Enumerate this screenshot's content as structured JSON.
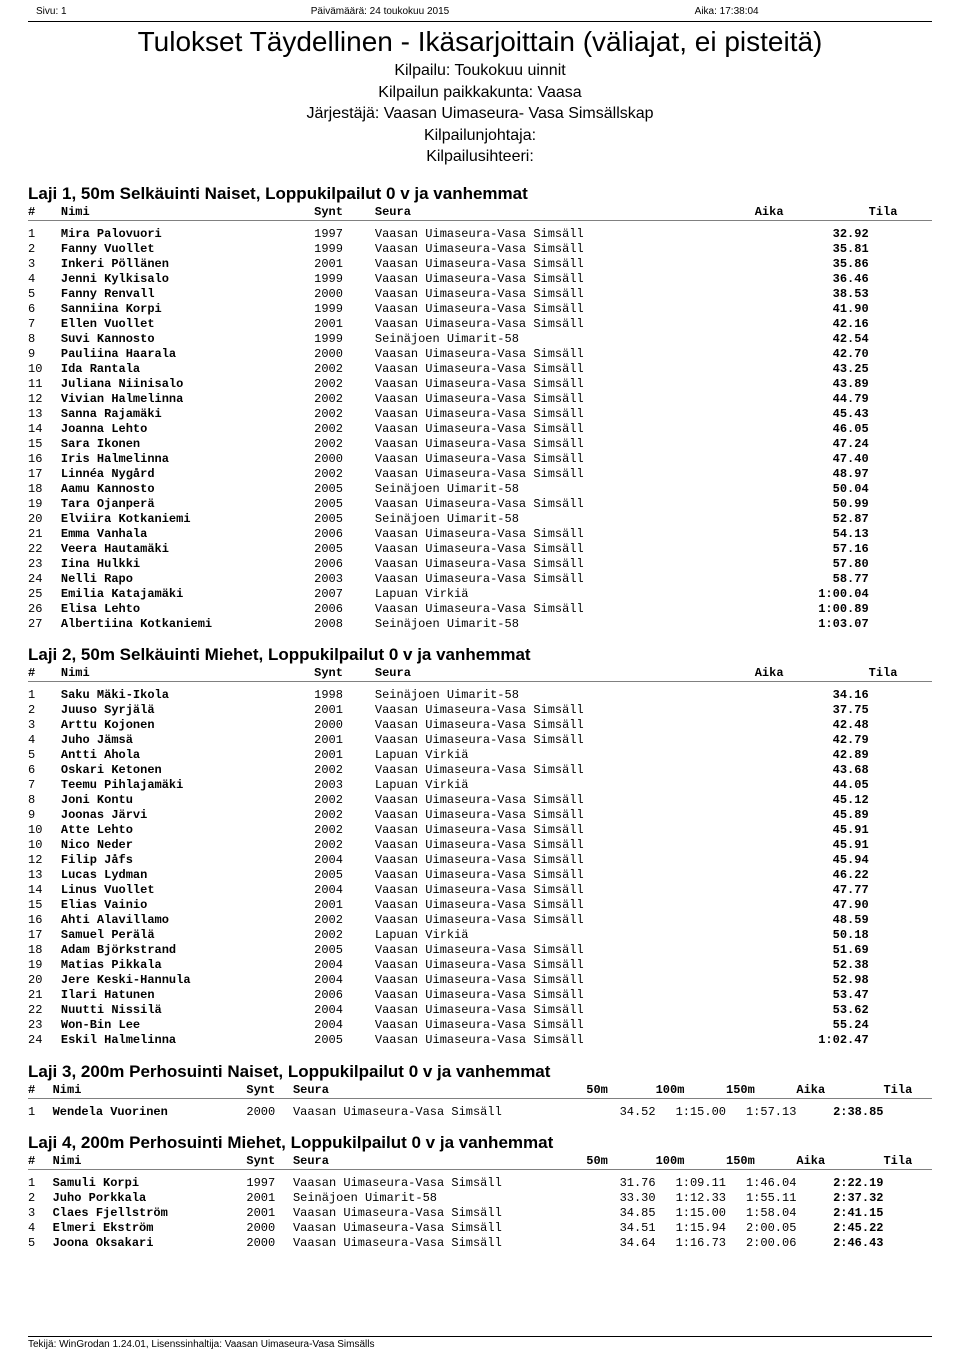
{
  "meta": {
    "page_label": "Sivu: 1",
    "date_label": "Päivämäärä: 24 toukokuu 2015",
    "time_label": "Aika: 17:38:04"
  },
  "title": "Tulokset Täydellinen - Ikäsarjoittain (väliajat, ei pisteitä)",
  "sub": {
    "comp": "Kilpailu: Toukokuu uinnit",
    "place": "Kilpailun paikkakunta: Vaasa",
    "org": "Järjestäjä: Vaasan Uimaseura- Vasa Simsällskap",
    "director": "Kilpailunjohtaja:",
    "secretary": "Kilpailusihteeri:"
  },
  "headers": {
    "rank": "#",
    "name": "Nimi",
    "synt": "Synt",
    "seura": "Seura",
    "s50": "50m",
    "s100": "100m",
    "s150": "150m",
    "aika": "Aika",
    "tila": "Tila"
  },
  "events": [
    {
      "title": "Laji 1, 50m Selkäuinti Naiset, Loppukilpailut 0 v ja vanhemmat",
      "splits": [],
      "rows": [
        {
          "r": "1",
          "n": "Mira Palovuori",
          "y": "1997",
          "c": "Vaasan Uimaseura-Vasa Simsäll",
          "t": "32.92"
        },
        {
          "r": "2",
          "n": "Fanny Vuollet",
          "y": "1999",
          "c": "Vaasan Uimaseura-Vasa Simsäll",
          "t": "35.81"
        },
        {
          "r": "3",
          "n": "Inkeri Pöllänen",
          "y": "2001",
          "c": "Vaasan Uimaseura-Vasa Simsäll",
          "t": "35.86"
        },
        {
          "r": "4",
          "n": "Jenni Kylkisalo",
          "y": "1999",
          "c": "Vaasan Uimaseura-Vasa Simsäll",
          "t": "36.46"
        },
        {
          "r": "5",
          "n": "Fanny Renvall",
          "y": "2000",
          "c": "Vaasan Uimaseura-Vasa Simsäll",
          "t": "38.53"
        },
        {
          "r": "6",
          "n": "Sanniina Korpi",
          "y": "1999",
          "c": "Vaasan Uimaseura-Vasa Simsäll",
          "t": "41.90"
        },
        {
          "r": "7",
          "n": "Ellen Vuollet",
          "y": "2001",
          "c": "Vaasan Uimaseura-Vasa Simsäll",
          "t": "42.16"
        },
        {
          "r": "8",
          "n": "Suvi Kannosto",
          "y": "1999",
          "c": "Seinäjoen Uimarit-58",
          "t": "42.54"
        },
        {
          "r": "9",
          "n": "Pauliina Haarala",
          "y": "2000",
          "c": "Vaasan Uimaseura-Vasa Simsäll",
          "t": "42.70"
        },
        {
          "r": "10",
          "n": "Ida Rantala",
          "y": "2002",
          "c": "Vaasan Uimaseura-Vasa Simsäll",
          "t": "43.25"
        },
        {
          "r": "11",
          "n": "Juliana Niinisalo",
          "y": "2002",
          "c": "Vaasan Uimaseura-Vasa Simsäll",
          "t": "43.89"
        },
        {
          "r": "12",
          "n": "Vivian Halmelinna",
          "y": "2002",
          "c": "Vaasan Uimaseura-Vasa Simsäll",
          "t": "44.79"
        },
        {
          "r": "13",
          "n": "Sanna Rajamäki",
          "y": "2002",
          "c": "Vaasan Uimaseura-Vasa Simsäll",
          "t": "45.43"
        },
        {
          "r": "14",
          "n": "Joanna Lehto",
          "y": "2002",
          "c": "Vaasan Uimaseura-Vasa Simsäll",
          "t": "46.05"
        },
        {
          "r": "15",
          "n": "Sara Ikonen",
          "y": "2002",
          "c": "Vaasan Uimaseura-Vasa Simsäll",
          "t": "47.24"
        },
        {
          "r": "16",
          "n": "Iris Halmelinna",
          "y": "2000",
          "c": "Vaasan Uimaseura-Vasa Simsäll",
          "t": "47.40"
        },
        {
          "r": "17",
          "n": "Linnéa Nygård",
          "y": "2002",
          "c": "Vaasan Uimaseura-Vasa Simsäll",
          "t": "48.97"
        },
        {
          "r": "18",
          "n": "Aamu Kannosto",
          "y": "2005",
          "c": "Seinäjoen Uimarit-58",
          "t": "50.04"
        },
        {
          "r": "19",
          "n": "Tara Ojanperä",
          "y": "2005",
          "c": "Vaasan Uimaseura-Vasa Simsäll",
          "t": "50.99"
        },
        {
          "r": "20",
          "n": "Elviira Kotkaniemi",
          "y": "2005",
          "c": "Seinäjoen Uimarit-58",
          "t": "52.87"
        },
        {
          "r": "21",
          "n": "Emma Vanhala",
          "y": "2006",
          "c": "Vaasan Uimaseura-Vasa Simsäll",
          "t": "54.13"
        },
        {
          "r": "22",
          "n": "Veera Hautamäki",
          "y": "2005",
          "c": "Vaasan Uimaseura-Vasa Simsäll",
          "t": "57.16"
        },
        {
          "r": "23",
          "n": "Iina Hulkki",
          "y": "2006",
          "c": "Vaasan Uimaseura-Vasa Simsäll",
          "t": "57.80"
        },
        {
          "r": "24",
          "n": "Nelli Rapo",
          "y": "2003",
          "c": "Vaasan Uimaseura-Vasa Simsäll",
          "t": "58.77"
        },
        {
          "r": "25",
          "n": "Emilia Katajamäki",
          "y": "2007",
          "c": "Lapuan Virkiä",
          "t": "1:00.04"
        },
        {
          "r": "26",
          "n": "Elisa Lehto",
          "y": "2006",
          "c": "Vaasan Uimaseura-Vasa Simsäll",
          "t": "1:00.89"
        },
        {
          "r": "27",
          "n": "Albertiina Kotkaniemi",
          "y": "2008",
          "c": "Seinäjoen Uimarit-58",
          "t": "1:03.07"
        }
      ]
    },
    {
      "title": "Laji 2, 50m Selkäuinti Miehet, Loppukilpailut 0 v ja vanhemmat",
      "splits": [],
      "rows": [
        {
          "r": "1",
          "n": "Saku Mäki-Ikola",
          "y": "1998",
          "c": "Seinäjoen Uimarit-58",
          "t": "34.16"
        },
        {
          "r": "2",
          "n": "Juuso Syrjälä",
          "y": "2001",
          "c": "Vaasan Uimaseura-Vasa Simsäll",
          "t": "37.75"
        },
        {
          "r": "3",
          "n": "Arttu Kojonen",
          "y": "2000",
          "c": "Vaasan Uimaseura-Vasa Simsäll",
          "t": "42.48"
        },
        {
          "r": "4",
          "n": "Juho Jämsä",
          "y": "2001",
          "c": "Vaasan Uimaseura-Vasa Simsäll",
          "t": "42.79"
        },
        {
          "r": "5",
          "n": "Antti Ahola",
          "y": "2001",
          "c": "Lapuan Virkiä",
          "t": "42.89"
        },
        {
          "r": "6",
          "n": "Oskari Ketonen",
          "y": "2002",
          "c": "Vaasan Uimaseura-Vasa Simsäll",
          "t": "43.68"
        },
        {
          "r": "7",
          "n": "Teemu Pihlajamäki",
          "y": "2003",
          "c": "Lapuan Virkiä",
          "t": "44.05"
        },
        {
          "r": "8",
          "n": "Joni Kontu",
          "y": "2002",
          "c": "Vaasan Uimaseura-Vasa Simsäll",
          "t": "45.12"
        },
        {
          "r": "9",
          "n": "Joonas Järvi",
          "y": "2002",
          "c": "Vaasan Uimaseura-Vasa Simsäll",
          "t": "45.89"
        },
        {
          "r": "10",
          "n": "Atte Lehto",
          "y": "2002",
          "c": "Vaasan Uimaseura-Vasa Simsäll",
          "t": "45.91"
        },
        {
          "r": "10",
          "n": "Nico Neder",
          "y": "2002",
          "c": "Vaasan Uimaseura-Vasa Simsäll",
          "t": "45.91"
        },
        {
          "r": "12",
          "n": "Filip Jåfs",
          "y": "2004",
          "c": "Vaasan Uimaseura-Vasa Simsäll",
          "t": "45.94"
        },
        {
          "r": "13",
          "n": "Lucas Lydman",
          "y": "2005",
          "c": "Vaasan Uimaseura-Vasa Simsäll",
          "t": "46.22"
        },
        {
          "r": "14",
          "n": "Linus Vuollet",
          "y": "2004",
          "c": "Vaasan Uimaseura-Vasa Simsäll",
          "t": "47.77"
        },
        {
          "r": "15",
          "n": "Elias Vainio",
          "y": "2001",
          "c": "Vaasan Uimaseura-Vasa Simsäll",
          "t": "47.90"
        },
        {
          "r": "16",
          "n": "Ahti Alavillamo",
          "y": "2002",
          "c": "Vaasan Uimaseura-Vasa Simsäll",
          "t": "48.59"
        },
        {
          "r": "17",
          "n": "Samuel Perälä",
          "y": "2002",
          "c": "Lapuan Virkiä",
          "t": "50.18"
        },
        {
          "r": "18",
          "n": "Adam Björkstrand",
          "y": "2005",
          "c": "Vaasan Uimaseura-Vasa Simsäll",
          "t": "51.69"
        },
        {
          "r": "19",
          "n": "Matias Pikkala",
          "y": "2004",
          "c": "Vaasan Uimaseura-Vasa Simsäll",
          "t": "52.38"
        },
        {
          "r": "20",
          "n": "Jere Keski-Hannula",
          "y": "2004",
          "c": "Vaasan Uimaseura-Vasa Simsäll",
          "t": "52.98"
        },
        {
          "r": "21",
          "n": "Ilari Hatunen",
          "y": "2006",
          "c": "Vaasan Uimaseura-Vasa Simsäll",
          "t": "53.47"
        },
        {
          "r": "22",
          "n": "Nuutti Nissilä",
          "y": "2004",
          "c": "Vaasan Uimaseura-Vasa Simsäll",
          "t": "53.62"
        },
        {
          "r": "23",
          "n": "Won-Bin Lee",
          "y": "2004",
          "c": "Vaasan Uimaseura-Vasa Simsäll",
          "t": "55.24"
        },
        {
          "r": "24",
          "n": "Eskil Halmelinna",
          "y": "2005",
          "c": "Vaasan Uimaseura-Vasa Simsäll",
          "t": "1:02.47"
        }
      ]
    },
    {
      "title": "Laji 3, 200m Perhosuinti Naiset, Loppukilpailut 0 v ja vanhemmat",
      "splits": [
        "s50",
        "s100",
        "s150"
      ],
      "rows": [
        {
          "r": "1",
          "n": "Wendela Vuorinen",
          "y": "2000",
          "c": "Vaasan Uimaseura-Vasa Simsäll",
          "s50": "34.52",
          "s100": "1:15.00",
          "s150": "1:57.13",
          "t": "2:38.85"
        }
      ]
    },
    {
      "title": "Laji 4, 200m Perhosuinti Miehet, Loppukilpailut 0 v ja vanhemmat",
      "splits": [
        "s50",
        "s100",
        "s150"
      ],
      "rows": [
        {
          "r": "1",
          "n": "Samuli Korpi",
          "y": "1997",
          "c": "Vaasan Uimaseura-Vasa Simsäll",
          "s50": "31.76",
          "s100": "1:09.11",
          "s150": "1:46.04",
          "t": "2:22.19"
        },
        {
          "r": "2",
          "n": "Juho Porkkala",
          "y": "2001",
          "c": "Seinäjoen Uimarit-58",
          "s50": "33.30",
          "s100": "1:12.33",
          "s150": "1:55.11",
          "t": "2:37.32"
        },
        {
          "r": "3",
          "n": "Claes Fjellström",
          "y": "2001",
          "c": "Vaasan Uimaseura-Vasa Simsäll",
          "s50": "34.85",
          "s100": "1:15.00",
          "s150": "1:58.04",
          "t": "2:41.15"
        },
        {
          "r": "4",
          "n": "Elmeri Ekström",
          "y": "2000",
          "c": "Vaasan Uimaseura-Vasa Simsäll",
          "s50": "34.51",
          "s100": "1:15.94",
          "s150": "2:00.05",
          "t": "2:45.22"
        },
        {
          "r": "5",
          "n": "Joona Oksakari",
          "y": "2000",
          "c": "Vaasan Uimaseura-Vasa Simsäll",
          "s50": "34.64",
          "s100": "1:16.73",
          "s150": "2:00.06",
          "t": "2:46.43"
        }
      ]
    }
  ],
  "footer": "Tekijä: WinGrodan 1.24.01, Lisenssinhaltija: Vaasan Uimaseura-Vasa Simsälls"
}
